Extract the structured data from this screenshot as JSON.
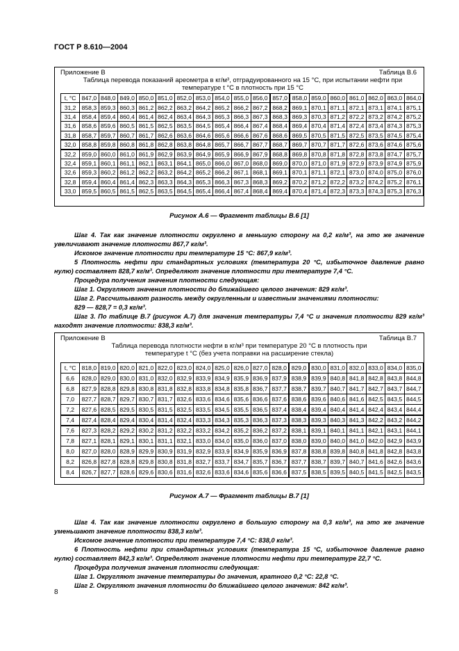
{
  "header": "ГОСТ Р 8.610—2004",
  "table_b6": {
    "appendix": "Приложение В",
    "label": "Таблица В.6",
    "title": "Таблица перевода показаний ареометра в кг/м³, отградуированного на 15 °С, при испытании нефти при температуре t °С в плотность при 15 °С",
    "rows": [
      [
        "t, °С",
        "847,0",
        "848,0",
        "849,0",
        "850,0",
        "851,0",
        "852,0",
        "853,0",
        "854,0",
        "855,0",
        "856,0",
        "857,0",
        "858,0",
        "859,0",
        "860,0",
        "861,0",
        "862,0",
        "863,0",
        "864,0"
      ],
      [
        "31,2",
        "858,3",
        "859,3",
        "860,3",
        "861,2",
        "862,2",
        "863,2",
        "864,2",
        "865,2",
        "866,2",
        "867,2",
        "868,2",
        "869,1",
        "870,1",
        "871,1",
        "872,1",
        "873,1",
        "874,1",
        "875,1"
      ],
      [
        "31,4",
        "858,4",
        "859,4",
        "860,4",
        "861,4",
        "862,4",
        "863,4",
        "864,3",
        "865,3",
        "866,3",
        "867,3",
        "868,3",
        "869,3",
        "870,3",
        "871,2",
        "872,2",
        "873,2",
        "874,2",
        "875,2"
      ],
      [
        "31,6",
        "858,6",
        "859,6",
        "860,5",
        "861,5",
        "862,5",
        "863,5",
        "864,5",
        "865,4",
        "866,4",
        "867,4",
        "868,4",
        "869,4",
        "870,4",
        "871,4",
        "872,4",
        "873,4",
        "874,3",
        "875,3"
      ],
      [
        "31,8",
        "858,7",
        "859,7",
        "860,7",
        "861,7",
        "862,6",
        "863,6",
        "864,6",
        "865,6",
        "866,6",
        "867,6",
        "868,6",
        "869,5",
        "870,5",
        "871,5",
        "872,5",
        "873,5",
        "874,5",
        "875,4"
      ],
      [
        "32,0",
        "858,8",
        "859,8",
        "860,8",
        "861,8",
        "862,8",
        "863,8",
        "864,8",
        "865,7",
        "866,7",
        "867,7",
        "868,7",
        "869,7",
        "870,7",
        "871,7",
        "872,6",
        "873,6",
        "874,6",
        "875,6"
      ],
      [
        "32,2",
        "859,0",
        "860,0",
        "861,0",
        "861,9",
        "862,9",
        "863,9",
        "864,9",
        "865,9",
        "866,9",
        "867,9",
        "868,8",
        "869,8",
        "870,8",
        "871,8",
        "872,8",
        "873,8",
        "874,7",
        "875,7"
      ],
      [
        "32,4",
        "859,1",
        "860,1",
        "861,1",
        "862,1",
        "863,1",
        "864,1",
        "865,0",
        "866,0",
        "867,0",
        "868,0",
        "869,0",
        "870,0",
        "871,0",
        "871,9",
        "872,9",
        "873,9",
        "874,9",
        "875,9"
      ],
      [
        "32,6",
        "859,3",
        "860,2",
        "861,2",
        "862,2",
        "863,2",
        "864,2",
        "865,2",
        "866,2",
        "867,1",
        "868,1",
        "869,1",
        "870,1",
        "871,1",
        "872,1",
        "873,0",
        "874,0",
        "875,0",
        "876,0"
      ],
      [
        "32,8",
        "859,4",
        "860,4",
        "861,4",
        "862,3",
        "863,3",
        "864,3",
        "865,3",
        "866,3",
        "867,3",
        "868,3",
        "869,2",
        "870,2",
        "871,2",
        "872,2",
        "873,2",
        "874,2",
        "875,2",
        "876,1"
      ],
      [
        "33,0",
        "859,5",
        "860,5",
        "861,5",
        "862,5",
        "863,5",
        "864,5",
        "865,4",
        "866,4",
        "867,4",
        "868,4",
        "869,4",
        "870,4",
        "871,4",
        "872,3",
        "873,3",
        "874,3",
        "875,3",
        "876,3"
      ]
    ]
  },
  "caption_a6": "Рисунок А.6 — Фрагмент таблицы В.6 [1]",
  "text_1": [
    "Шаг 4. Так как значение плотности округлено в меньшую сторону на 0,2 кг/м³, на это же значение увеличивают значение плотности 867,7 кг/м³.",
    "Искомое значение плотности при температуре 15 °С: 867,9 кг/м³.",
    "5 Плотность нефти при стандартных условиях (температура 20 °С, избыточное давление равно нулю) составляет 828,7 кг/м³. Определяют значение плотности при температуре 7,4 °С.",
    "Процедура получения значения плотности следующая:",
    "Шаг 1. Округляют значения плотности до ближайшего целого значения: 829 кг/м³.",
    "Шаг 2. Рассчитывают разность между округленным и известным значениями плотности:",
    "829 — 828,7 = 0,3 кг/м³.",
    "Шаг 3. По таблице В.7 (рисунок А.7) для значения температуры 7,4 °С и значения плотности 829 кг/м³ находят значение плотности: 838,3 кг/м³."
  ],
  "table_b7": {
    "appendix": "Приложение В",
    "label": "Таблица В.7",
    "title": "Таблица перевода плотности нефти в кг/м³ при температуре 20 °С в плотность при температуре t °С (без учета поправки на расширение стекла)",
    "rows": [
      [
        "t, °С",
        "818,0",
        "819,0",
        "820,0",
        "821,0",
        "822,0",
        "823,0",
        "824,0",
        "825,0",
        "826,0",
        "827,0",
        "828,0",
        "829,0",
        "830,0",
        "831,0",
        "832,0",
        "833,0",
        "834,0",
        "835,0"
      ],
      [
        "6,6",
        "828,0",
        "829,0",
        "830,0",
        "831,0",
        "832,0",
        "832,9",
        "833,9",
        "834,9",
        "835,9",
        "836,9",
        "837,9",
        "838,9",
        "839,9",
        "840,8",
        "841,8",
        "842,8",
        "843,8",
        "844,8"
      ],
      [
        "6,8",
        "827,9",
        "828,8",
        "829,8",
        "830,8",
        "831,8",
        "832,8",
        "833,8",
        "834,8",
        "835,8",
        "836,7",
        "837,7",
        "838,7",
        "839,7",
        "840,7",
        "841,7",
        "842,7",
        "843,7",
        "844,7"
      ],
      [
        "7,0",
        "827,7",
        "828,7",
        "829,7",
        "830,7",
        "831,7",
        "832,6",
        "833,6",
        "834,6",
        "835,6",
        "836,6",
        "837,6",
        "838,6",
        "839,6",
        "840,6",
        "841,6",
        "842,5",
        "843,5",
        "844,5"
      ],
      [
        "7,2",
        "827,6",
        "828,5",
        "829,5",
        "830,5",
        "831,5",
        "832,5",
        "833,5",
        "834,5",
        "835,5",
        "836,5",
        "837,4",
        "838,4",
        "839,4",
        "840,4",
        "841,4",
        "842,4",
        "843,4",
        "844,4"
      ],
      [
        "7,4",
        "827,4",
        "828,4",
        "829,4",
        "830,4",
        "831,4",
        "832,4",
        "833,3",
        "834,3",
        "835,3",
        "836,3",
        "837,3",
        "838,3",
        "839,3",
        "840,3",
        "841,3",
        "842,2",
        "843,2",
        "844,2"
      ],
      [
        "7,6",
        "827,3",
        "828,2",
        "829,2",
        "830,2",
        "831,2",
        "832,2",
        "833,2",
        "834,2",
        "835,2",
        "836,2",
        "837,2",
        "838,1",
        "839,1",
        "840,1",
        "841,1",
        "842,1",
        "843,1",
        "844,1"
      ],
      [
        "7,8",
        "827,1",
        "828,1",
        "829,1",
        "830,1",
        "831,1",
        "832,1",
        "833,0",
        "834,0",
        "835,0",
        "836,0",
        "837,0",
        "838,0",
        "839,0",
        "840,0",
        "841,0",
        "842,0",
        "842,9",
        "843,9"
      ],
      [
        "8,0",
        "827,0",
        "828,0",
        "828,9",
        "829,9",
        "830,9",
        "831,9",
        "832,9",
        "833,9",
        "834,9",
        "835,9",
        "836,9",
        "837,8",
        "838,8",
        "839,8",
        "840,8",
        "841,8",
        "842,8",
        "843,8"
      ],
      [
        "8,2",
        "826,8",
        "827,8",
        "828,8",
        "829,8",
        "830,8",
        "831,8",
        "832,7",
        "833,7",
        "834,7",
        "835,7",
        "836,7",
        "837,7",
        "838,7",
        "839,7",
        "840,7",
        "841,6",
        "842,6",
        "843,6"
      ],
      [
        "8,4",
        "826,7",
        "827,7",
        "828,6",
        "829,6",
        "830,6",
        "831,6",
        "832,6",
        "833,6",
        "834,6",
        "835,6",
        "836,6",
        "837,5",
        "838,5",
        "839,5",
        "840,5",
        "841,5",
        "842,5",
        "843,5"
      ]
    ]
  },
  "caption_a7": "Рисунок А.7 — Фрагмент таблицы В.7 [1]",
  "text_2": [
    "Шаг 4. Так как значение плотности округлено в большую сторону на 0,3 кг/м³, на это же значение уменьшают значение плотности 838,3 кг/м³.",
    "Искомое значение плотности при температуре 7,4 °С: 838,0 кг/м³.",
    "6 Плотность нефти при стандартных условиях (температура 15 °С, избыточное давление равно нулю) составляет 842,3 кг/м³. Определяют значение плотности нефти при температуре 22,7 °С.",
    "Процедура получения значения плотности следующая:",
    "Шаг 1. Округляют значение температуры до значения, кратного 0,2 °С: 22,8 °С.",
    "Шаг 2. Округляют значения плотности до ближайшего целого значения: 842 кг/м³."
  ],
  "page_number": "8"
}
